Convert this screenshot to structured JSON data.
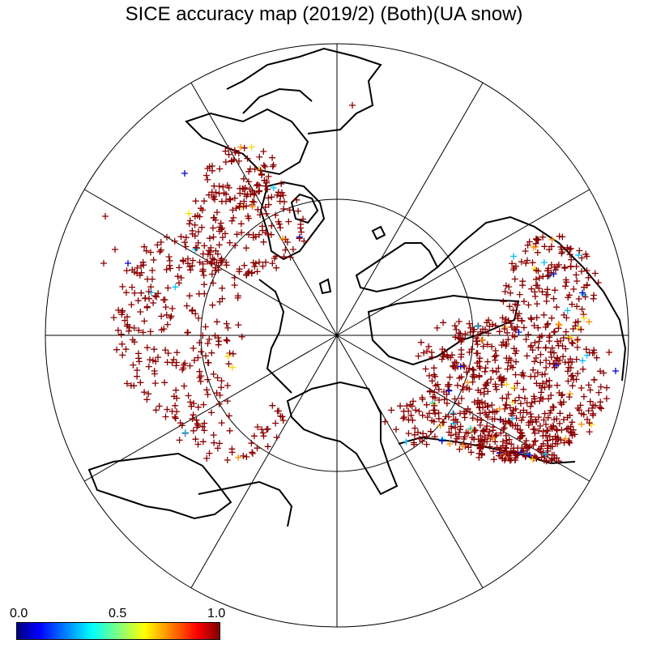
{
  "title": "SICE accuracy map (2019/2) (Both)(UA snow)",
  "colorbar": {
    "labels": [
      "0.0",
      "0.5",
      "1.0"
    ],
    "min": 0.0,
    "max": 1.0,
    "colormap": [
      "#00007f",
      "#0000ff",
      "#0080ff",
      "#00ffff",
      "#7fff7f",
      "#ffff00",
      "#ff8000",
      "#ff0000",
      "#7f0000"
    ]
  },
  "map": {
    "projection": "north polar stereographic",
    "center": "North Pole",
    "graticule": "meridians every 30 degrees, inner latitude circle",
    "marker_symbol": "+",
    "dominant_marker_color": "#8b0000",
    "other_marker_colors": [
      "#0000cd",
      "#00bfff",
      "#ffd700",
      "#ff8c00"
    ],
    "point_clusters": [
      {
        "region": "Europe / Scandinavia",
        "accuracy": 1.0
      },
      {
        "region": "North Atlantic / Greenland Sea",
        "accuracy": 1.0
      },
      {
        "region": "Western Russia / Siberia",
        "accuracy": 1.0
      },
      {
        "region": "North America / Canada",
        "accuracy": 1.0
      },
      {
        "region": "Alaska coast",
        "accuracy": 1.0
      }
    ]
  }
}
